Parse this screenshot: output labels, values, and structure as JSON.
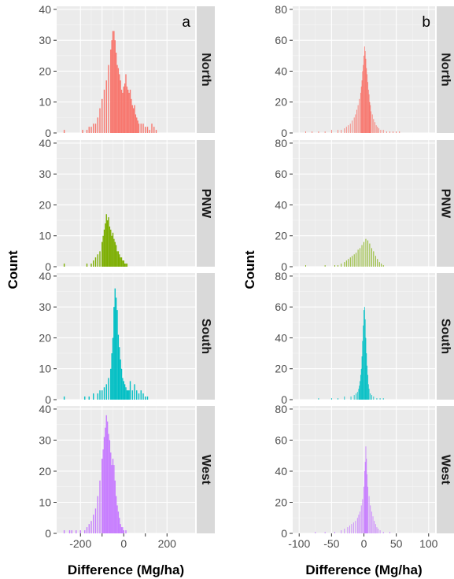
{
  "chart_data": [
    {
      "panel": "a",
      "type": "histogram",
      "facet_by": "region",
      "facets": [
        "North",
        "PNW",
        "South",
        "West"
      ],
      "xlabel": "Difference (Mg/ha)",
      "ylabel": "Count",
      "x_ticks": [
        -200,
        -100,
        0,
        100,
        200
      ],
      "x_tick_labels": [
        "-200",
        "",
        "0",
        "",
        "200"
      ],
      "xlim": [
        -310,
        330
      ],
      "ylim": [
        0,
        41
      ],
      "y_ticks": [
        0,
        10,
        20,
        30,
        40
      ],
      "bin_width": 5,
      "grid": true,
      "series": [
        {
          "facet": "North",
          "color": "#F8766D",
          "x": [
            -275,
            -190,
            -170,
            -160,
            -150,
            -140,
            -130,
            -120,
            -110,
            -100,
            -90,
            -80,
            -70,
            -60,
            -55,
            -50,
            -45,
            -40,
            -35,
            -30,
            -25,
            -20,
            -15,
            -10,
            -5,
            0,
            5,
            10,
            15,
            20,
            25,
            30,
            35,
            40,
            45,
            50,
            55,
            60,
            65,
            70,
            80,
            90,
            100,
            110,
            120,
            130,
            140,
            150
          ],
          "y": [
            1,
            1,
            1,
            2,
            2,
            3,
            3,
            5,
            8,
            11,
            14,
            17,
            22,
            27,
            30,
            33,
            33,
            30,
            26,
            22,
            21,
            19,
            17,
            14,
            13,
            15,
            16,
            19,
            15,
            14,
            13,
            14,
            11,
            9,
            8,
            9,
            6,
            5,
            4,
            3,
            3,
            3,
            2,
            2,
            1,
            3,
            2,
            1
          ]
        },
        {
          "facet": "PNW",
          "color": "#7CAE00",
          "x": [
            -275,
            -170,
            -150,
            -140,
            -130,
            -120,
            -110,
            -100,
            -95,
            -90,
            -85,
            -80,
            -75,
            -70,
            -65,
            -60,
            -55,
            -50,
            -45,
            -40,
            -35,
            -30,
            -25,
            -20,
            -15,
            -10,
            -5,
            0,
            5,
            10,
            15
          ],
          "y": [
            1,
            1,
            1,
            2,
            3,
            4,
            5,
            8,
            10,
            12,
            14,
            17,
            15,
            16,
            13,
            12,
            10,
            11,
            9,
            8,
            7,
            5,
            5,
            4,
            3,
            3,
            2,
            2,
            1,
            1,
            1
          ]
        },
        {
          "facet": "South",
          "color": "#00BFC4",
          "x": [
            -275,
            -180,
            -160,
            -140,
            -120,
            -110,
            -100,
            -90,
            -80,
            -70,
            -60,
            -55,
            -50,
            -45,
            -40,
            -35,
            -30,
            -25,
            -20,
            -15,
            -10,
            -5,
            0,
            5,
            10,
            15,
            20,
            25,
            30,
            40,
            50,
            60,
            70,
            80,
            90,
            100,
            110
          ],
          "y": [
            1,
            1,
            1,
            2,
            2,
            3,
            3,
            4,
            5,
            7,
            10,
            15,
            20,
            30,
            36,
            33,
            29,
            21,
            17,
            13,
            10,
            7,
            6,
            5,
            4,
            3,
            3,
            3,
            6,
            3,
            5,
            3,
            2,
            3,
            2,
            1,
            1
          ]
        },
        {
          "facet": "West",
          "color": "#C77CFF",
          "x": [
            -275,
            -250,
            -240,
            -220,
            -200,
            -180,
            -170,
            -160,
            -150,
            -140,
            -130,
            -120,
            -110,
            -100,
            -95,
            -90,
            -85,
            -80,
            -75,
            -70,
            -65,
            -60,
            -55,
            -50,
            -45,
            -40,
            -35,
            -30,
            -25,
            -20,
            -15,
            -10,
            -5,
            0,
            10
          ],
          "y": [
            1,
            1,
            1,
            1,
            1,
            1,
            2,
            3,
            4,
            6,
            8,
            12,
            17,
            24,
            27,
            31,
            34,
            38,
            36,
            32,
            30,
            26,
            22,
            24,
            22,
            17,
            12,
            9,
            7,
            5,
            3,
            2,
            2,
            1,
            1
          ]
        }
      ]
    },
    {
      "panel": "b",
      "type": "histogram",
      "facet_by": "region",
      "facets": [
        "North",
        "PNW",
        "South",
        "West"
      ],
      "xlabel": "Difference (Mg/ha)",
      "ylabel": "Count",
      "x_ticks": [
        -100,
        -50,
        0,
        50,
        100
      ],
      "x_tick_labels": [
        "-100",
        "-50",
        "0",
        "50",
        "100"
      ],
      "xlim": [
        -110,
        110
      ],
      "ylim": [
        0,
        82
      ],
      "y_ticks": [
        0,
        20,
        40,
        60,
        80
      ],
      "bin_width": 1,
      "grid": true,
      "series": [
        {
          "facet": "North",
          "color": "#F8766D",
          "x": [
            -90,
            -80,
            -70,
            -60,
            -50,
            -40,
            -35,
            -30,
            -27,
            -24,
            -21,
            -18,
            -15,
            -13,
            -11,
            -9,
            -7,
            -5,
            -4,
            -3,
            -2,
            -1,
            0,
            1,
            2,
            3,
            4,
            5,
            6,
            7,
            8,
            9,
            10,
            11,
            13,
            15,
            17,
            19,
            21,
            23,
            26,
            30,
            35,
            40,
            45,
            50,
            55
          ],
          "y": [
            1,
            1,
            1,
            1,
            2,
            2,
            2,
            3,
            4,
            5,
            6,
            8,
            10,
            12,
            15,
            18,
            22,
            26,
            30,
            34,
            40,
            44,
            50,
            56,
            53,
            48,
            42,
            38,
            33,
            28,
            25,
            20,
            18,
            14,
            12,
            9,
            7,
            5,
            4,
            3,
            2,
            2,
            1,
            1,
            1,
            1,
            1
          ]
        },
        {
          "facet": "PNW",
          "color": "#7CAE00",
          "x": [
            -90,
            -60,
            -45,
            -40,
            -35,
            -30,
            -27,
            -24,
            -21,
            -18,
            -15,
            -12,
            -9,
            -6,
            -3,
            0,
            3,
            6,
            9,
            12,
            15,
            18,
            21,
            24,
            27,
            30
          ],
          "y": [
            1,
            1,
            1,
            1,
            2,
            3,
            4,
            5,
            6,
            7,
            8,
            9,
            11,
            12,
            14,
            16,
            18,
            17,
            15,
            12,
            10,
            7,
            5,
            3,
            2,
            1
          ]
        },
        {
          "facet": "South",
          "color": "#00BFC4",
          "x": [
            -70,
            -50,
            -40,
            -30,
            -20,
            -15,
            -12,
            -10,
            -8,
            -7,
            -6,
            -5,
            -4,
            -3,
            -2,
            -1,
            0,
            1,
            2,
            3,
            4,
            5,
            6,
            7,
            8,
            10,
            12,
            15,
            20,
            25,
            30
          ],
          "y": [
            1,
            1,
            1,
            2,
            2,
            3,
            4,
            5,
            7,
            9,
            12,
            16,
            20,
            28,
            38,
            48,
            58,
            60,
            52,
            40,
            30,
            22,
            16,
            10,
            7,
            4,
            3,
            2,
            1,
            1,
            1
          ]
        },
        {
          "facet": "West",
          "color": "#C77CFF",
          "x": [
            -75,
            -60,
            -45,
            -35,
            -30,
            -25,
            -22,
            -19,
            -16,
            -13,
            -10,
            -8,
            -6,
            -4,
            -2,
            0,
            1,
            2,
            3,
            4,
            5,
            6,
            8,
            10,
            12,
            14,
            16,
            18,
            20,
            22,
            25,
            30,
            40
          ],
          "y": [
            1,
            1,
            1,
            2,
            3,
            4,
            5,
            6,
            7,
            8,
            10,
            12,
            14,
            18,
            22,
            30,
            40,
            46,
            56,
            48,
            38,
            30,
            24,
            18,
            14,
            11,
            8,
            6,
            4,
            3,
            2,
            1,
            1
          ]
        }
      ]
    }
  ]
}
